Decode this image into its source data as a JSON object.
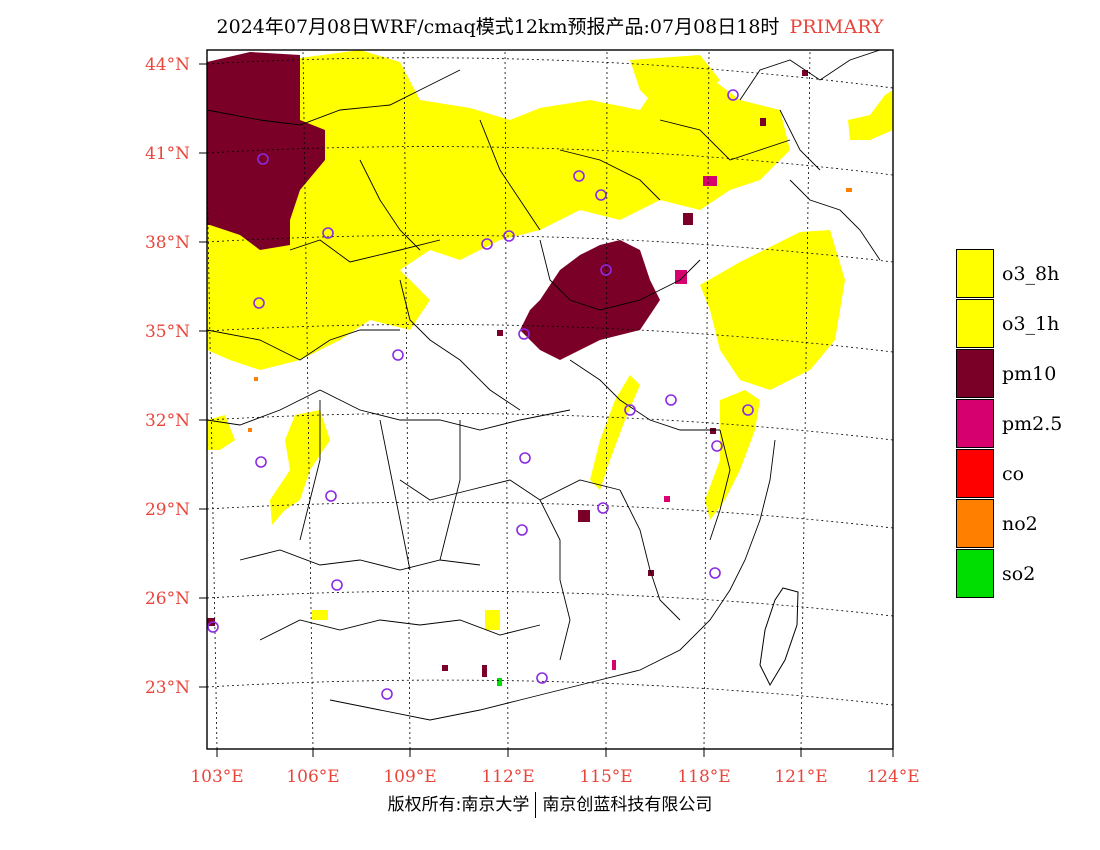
{
  "title": {
    "main": "2024年07月08日WRF/cmaq模式12km预报产品:07月08日18时",
    "tag": "PRIMARY"
  },
  "axes": {
    "lat_labels": [
      "44°N",
      "41°N",
      "38°N",
      "35°N",
      "32°N",
      "29°N",
      "26°N",
      "23°N"
    ],
    "lon_labels": [
      "103°E",
      "106°E",
      "109°E",
      "112°E",
      "115°E",
      "118°E",
      "121°E",
      "124°E"
    ]
  },
  "legend": [
    {
      "label": "o3_8h",
      "color": "#ffff00"
    },
    {
      "label": "o3_1h",
      "color": "#ffff00"
    },
    {
      "label": "pm10",
      "color": "#7a0028"
    },
    {
      "label": "pm2.5",
      "color": "#d6006e"
    },
    {
      "label": "co",
      "color": "#ff0000"
    },
    {
      "label": "no2",
      "color": "#ff7f00"
    },
    {
      "label": "so2",
      "color": "#00dd00"
    }
  ],
  "footer": {
    "left": "版权所有:南京大学",
    "right": "南京创蓝科技有限公司"
  },
  "colors": {
    "label_red": "#e8453c",
    "station_marker": "#8a2be2"
  }
}
